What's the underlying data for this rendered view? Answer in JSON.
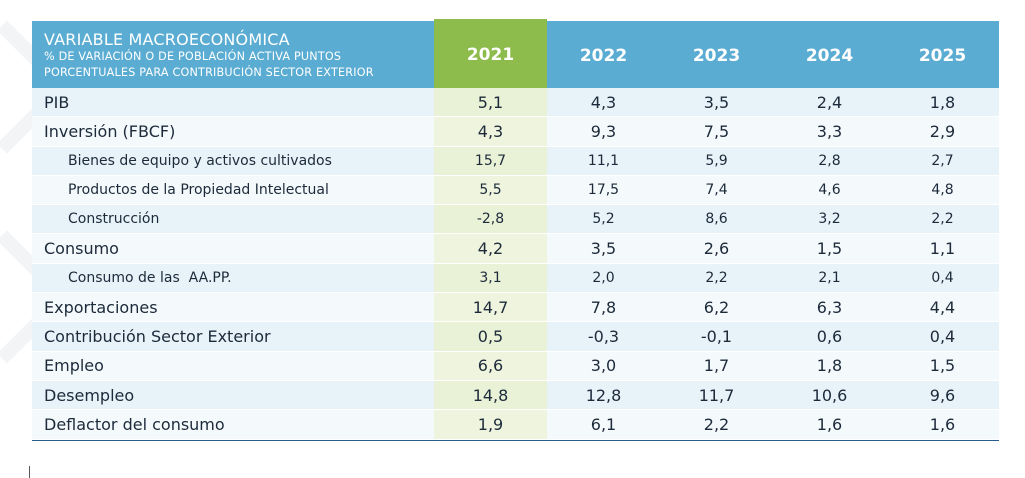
{
  "header": {
    "title": "VARIABLE MACROECONÓMICA",
    "subtitle_line1": "% DE VARIACIÓN O DE POBLACIÓN ACTIVA PUNTOS",
    "subtitle_line2": "PORCENTUALES PARA CONTRIBUCIÓN SECTOR EXTERIOR",
    "years": [
      "2021",
      "2022",
      "2023",
      "2024",
      "2025"
    ],
    "highlight_year": "2021"
  },
  "colors": {
    "header_blue": "#5aacd3",
    "highlight_green": "#8dbb4c",
    "row_light": "#e7f2f9",
    "row_lighter": "#f4f9fc"
  },
  "rows": [
    {
      "label": "PIB",
      "sub": false,
      "values": [
        "5,1",
        "4,3",
        "3,5",
        "2,4",
        "1,8"
      ]
    },
    {
      "label": "Inversión (FBCF)",
      "sub": false,
      "values": [
        "4,3",
        "9,3",
        "7,5",
        "3,3",
        "2,9"
      ]
    },
    {
      "label": "Bienes de equipo y activos cultivados",
      "sub": true,
      "values": [
        "15,7",
        "11,1",
        "5,9",
        "2,8",
        "2,7"
      ]
    },
    {
      "label": "Productos de la Propiedad Intelectual",
      "sub": true,
      "values": [
        "5,5",
        "17,5",
        "7,4",
        "4,6",
        "4,8"
      ]
    },
    {
      "label": "Construcción",
      "sub": true,
      "values": [
        "-2,8",
        "5,2",
        "8,6",
        "3,2",
        "2,2"
      ]
    },
    {
      "label": "Consumo",
      "sub": false,
      "values": [
        "4,2",
        "3,5",
        "2,6",
        "1,5",
        "1,1"
      ]
    },
    {
      "label": "Consumo de las  AA.PP.",
      "sub": true,
      "values": [
        "3,1",
        "2,0",
        "2,2",
        "2,1",
        "0,4"
      ]
    },
    {
      "label": "Exportaciones",
      "sub": false,
      "values": [
        "14,7",
        "7,8",
        "6,2",
        "6,3",
        "4,4"
      ]
    },
    {
      "label": "Contribución Sector Exterior",
      "sub": false,
      "values": [
        "0,5",
        "-0,3",
        "-0,1",
        "0,6",
        "0,4"
      ]
    },
    {
      "label": "Empleo",
      "sub": false,
      "values": [
        "6,6",
        "3,0",
        "1,7",
        "1,8",
        "1,5"
      ]
    },
    {
      "label": "Desempleo",
      "sub": false,
      "values": [
        "14,8",
        "12,8",
        "11,7",
        "10,6",
        "9,6"
      ]
    },
    {
      "label": "Deflactor del consumo",
      "sub": false,
      "values": [
        "1,9",
        "6,1",
        "2,2",
        "1,6",
        "1,6"
      ]
    }
  ]
}
